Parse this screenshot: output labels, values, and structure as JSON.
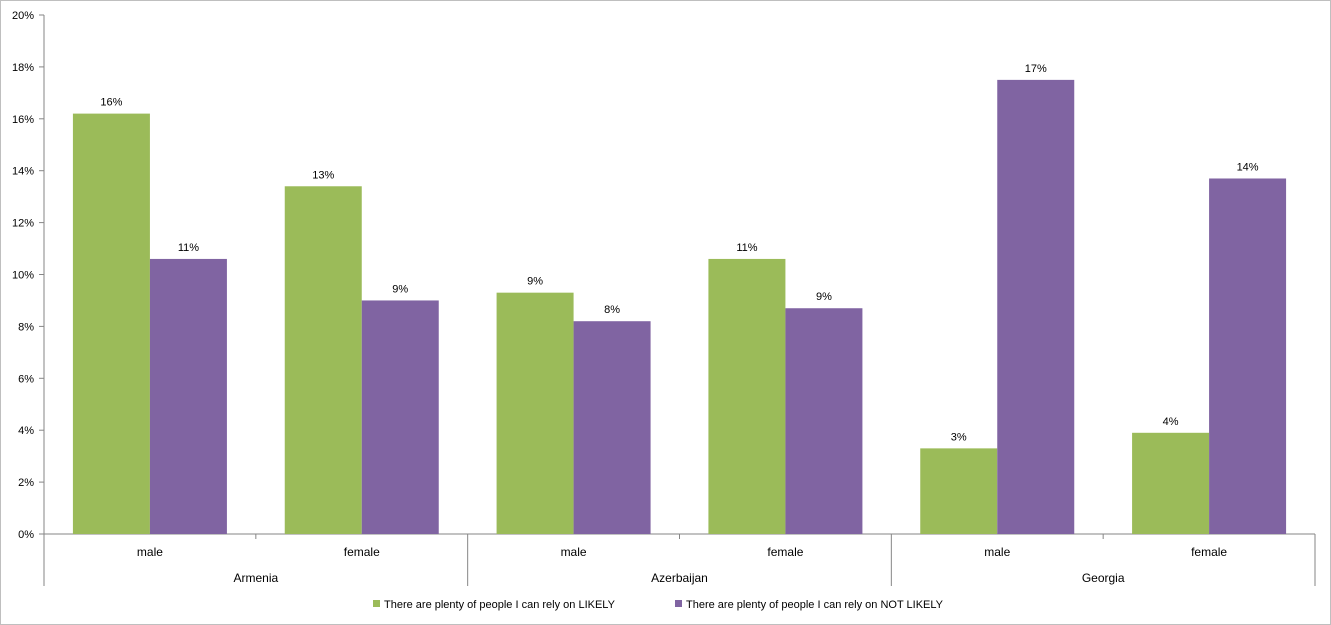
{
  "chart_data": {
    "type": "bar",
    "y_axis": {
      "min": 0,
      "max": 20,
      "step": 2,
      "tick_labels": [
        "0%",
        "2%",
        "4%",
        "6%",
        "8%",
        "10%",
        "12%",
        "14%",
        "16%",
        "18%",
        "20%"
      ],
      "grid": false
    },
    "groups": [
      {
        "label": "Armenia",
        "subcategories": [
          "male",
          "female"
        ]
      },
      {
        "label": "Azerbaijan",
        "subcategories": [
          "male",
          "female"
        ]
      },
      {
        "label": "Georgia",
        "subcategories": [
          "male",
          "female"
        ]
      }
    ],
    "series": [
      {
        "name": "There are plenty of people I can rely on LIKELY",
        "color": "#9bbb59",
        "values": [
          16.2,
          13.4,
          9.3,
          10.6,
          3.3,
          3.9
        ],
        "data_labels": [
          "16%",
          "13%",
          "9%",
          "11%",
          "3%",
          "4%"
        ]
      },
      {
        "name": "There are plenty of people I can rely on NOT LIKELY",
        "color": "#8064a2",
        "values": [
          10.6,
          9.0,
          8.2,
          8.7,
          17.5,
          13.7
        ],
        "data_labels": [
          "11%",
          "9%",
          "8%",
          "9%",
          "17%",
          "14%"
        ]
      }
    ],
    "legend_position": "bottom"
  }
}
